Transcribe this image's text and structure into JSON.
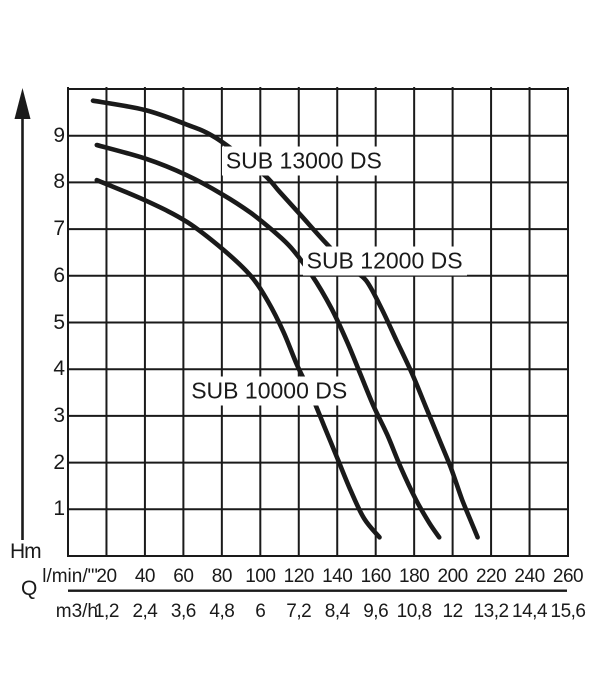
{
  "colors": {
    "ink": "#1a1a1a",
    "background": "#ffffff"
  },
  "chart_data": {
    "type": "line",
    "title": "",
    "grid": true,
    "legend_position": "inline-labels-on-white-boxes",
    "y_axis": {
      "label": "Hm",
      "ticks": [
        1,
        2,
        3,
        4,
        5,
        6,
        7,
        8,
        9
      ],
      "range": [
        0,
        10
      ]
    },
    "x_axis": {
      "label": "Q",
      "range_l_min": [
        0,
        260
      ],
      "row1": {
        "unit": "l/min/\"'",
        "ticks": [
          20,
          40,
          60,
          80,
          100,
          120,
          140,
          160,
          180,
          200,
          220,
          240,
          260
        ]
      },
      "row2": {
        "unit": "m3/h",
        "ticks": [
          "1,2",
          "2,4",
          "3,6",
          "4,8",
          "6",
          "7,2",
          "8,4",
          "9,6",
          "10,8",
          "12",
          "13,2",
          "14,4",
          "15,6"
        ]
      }
    },
    "series": [
      {
        "name": "SUB 13000 DS",
        "label_q": 80,
        "label_h": 8.46,
        "points": [
          [
            13,
            9.75
          ],
          [
            40,
            9.55
          ],
          [
            61,
            9.25
          ],
          [
            77,
            8.95
          ],
          [
            101,
            8.2
          ],
          [
            110,
            7.8
          ],
          [
            121,
            7.3
          ],
          [
            133,
            6.75
          ],
          [
            146,
            6.2
          ],
          [
            155,
            5.9
          ],
          [
            163,
            5.3
          ],
          [
            171,
            4.6
          ],
          [
            179,
            3.9
          ],
          [
            186,
            3.2
          ],
          [
            193,
            2.5
          ],
          [
            199,
            1.9
          ],
          [
            205,
            1.2
          ],
          [
            210,
            0.7
          ],
          [
            213,
            0.4
          ]
        ]
      },
      {
        "name": "SUB 12000 DS",
        "label_q": 122,
        "label_h": 6.32,
        "points": [
          [
            15,
            8.8
          ],
          [
            41,
            8.5
          ],
          [
            62,
            8.15
          ],
          [
            80,
            7.75
          ],
          [
            95,
            7.35
          ],
          [
            107,
            6.95
          ],
          [
            116,
            6.6
          ],
          [
            127,
            6.0
          ],
          [
            137,
            5.3
          ],
          [
            145,
            4.6
          ],
          [
            152,
            3.9
          ],
          [
            159,
            3.2
          ],
          [
            166,
            2.6
          ],
          [
            173,
            1.9
          ],
          [
            181,
            1.2
          ],
          [
            188,
            0.7
          ],
          [
            193,
            0.4
          ]
        ]
      },
      {
        "name": "SUB 10000 DS",
        "label_q": 62,
        "label_h": 3.53,
        "points": [
          [
            15,
            8.05
          ],
          [
            41,
            7.6
          ],
          [
            62,
            7.15
          ],
          [
            81,
            6.55
          ],
          [
            95,
            6.0
          ],
          [
            104,
            5.45
          ],
          [
            112,
            4.8
          ],
          [
            119,
            4.1
          ],
          [
            126,
            3.5
          ],
          [
            133,
            2.8
          ],
          [
            140,
            2.1
          ],
          [
            147,
            1.4
          ],
          [
            154,
            0.8
          ],
          [
            162,
            0.4
          ]
        ]
      }
    ]
  }
}
